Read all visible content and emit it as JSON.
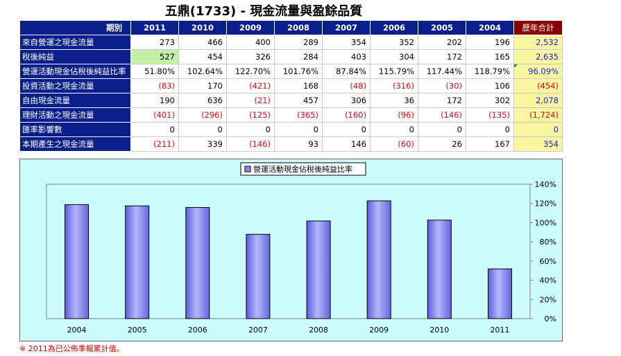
{
  "header": {
    "title": "五鼎(1733) -  現金流量與盈餘品質"
  },
  "table": {
    "corner_label": "期別",
    "years": [
      "2011",
      "2010",
      "2009",
      "2008",
      "2007",
      "2006",
      "2005",
      "2004"
    ],
    "total_label": "歷年合計",
    "rows": [
      {
        "label": "來自營運之現金流量",
        "values": [
          "273",
          "466",
          "400",
          "289",
          "354",
          "352",
          "202",
          "196"
        ],
        "total": "2,532"
      },
      {
        "label": "稅後純益",
        "values": [
          "527",
          "454",
          "326",
          "284",
          "403",
          "304",
          "172",
          "165"
        ],
        "total": "2,635"
      },
      {
        "label": "營運活動現金佔稅後純益比率",
        "values": [
          "51.80%",
          "102.64%",
          "122.70%",
          "101.76%",
          "87.84%",
          "115.79%",
          "117.44%",
          "118.79%"
        ],
        "total": "96.09%"
      },
      {
        "label": "投資活動之現金流量",
        "values": [
          "(83)",
          "170",
          "(421)",
          "168",
          "(48)",
          "(316)",
          "(30)",
          "106"
        ],
        "total": "(454)"
      },
      {
        "label": "自由現金流量",
        "values": [
          "190",
          "636",
          "(21)",
          "457",
          "306",
          "36",
          "172",
          "302"
        ],
        "total": "2,078"
      },
      {
        "label": "理財活動之現金流量",
        "values": [
          "(401)",
          "(296)",
          "(125)",
          "(365)",
          "(160)",
          "(96)",
          "(146)",
          "(135)"
        ],
        "total": "(1,724)"
      },
      {
        "label": "匯率影響數",
        "values": [
          "0",
          "0",
          "0",
          "0",
          "0",
          "0",
          "0",
          "0"
        ],
        "total": "0"
      },
      {
        "label": "本期產生之現金流量",
        "values": [
          "(211)",
          "339",
          "(146)",
          "93",
          "146",
          "(60)",
          "26",
          "167"
        ],
        "total": "354"
      }
    ]
  },
  "chart_data": {
    "type": "bar",
    "categories": [
      "2004",
      "2005",
      "2006",
      "2007",
      "2008",
      "2009",
      "2010",
      "2011"
    ],
    "series": [
      {
        "name": "營運活動現金佔稅後純益比率",
        "values": [
          118.79,
          117.44,
          115.79,
          87.84,
          101.76,
          122.7,
          102.64,
          51.8
        ]
      }
    ],
    "ylim": [
      0,
      140
    ],
    "yticks": [
      "0%",
      "20%",
      "40%",
      "60%",
      "80%",
      "100%",
      "120%",
      "140%"
    ],
    "legend_position": "top-center",
    "grid": false,
    "colors": {
      "bar": "#8a8cf0",
      "bar_edge": "#000000",
      "background": "#ccfcfc"
    }
  },
  "footnote": "※ 2011為已公佈季報累計值。"
}
